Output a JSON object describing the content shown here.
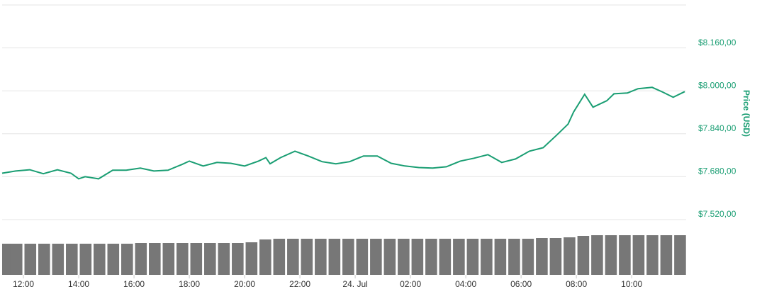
{
  "chart_data": [
    {
      "type": "line",
      "x": [
        11.23,
        11.72,
        12.23,
        12.72,
        13.23,
        13.72,
        14.0,
        14.23,
        14.72,
        15.23,
        15.72,
        16.23,
        16.72,
        17.23,
        17.72,
        18.0,
        18.5,
        19.0,
        19.5,
        20.0,
        20.5,
        20.77,
        20.92,
        21.3,
        21.82,
        22.3,
        22.8,
        23.3,
        23.8,
        24.3,
        24.8,
        25.3,
        25.8,
        26.3,
        26.8,
        27.3,
        27.8,
        28.3,
        28.8,
        29.3,
        29.8,
        30.3,
        30.8,
        31.3,
        31.7,
        31.9,
        32.3,
        32.6,
        33.1,
        33.36,
        33.85,
        34.23,
        34.74,
        35.13,
        35.5,
        35.92
      ],
      "series": [
        {
          "color": "#1a9e73",
          "values": [
            7693,
            7701,
            7706,
            7691,
            7706,
            7693,
            7672,
            7680,
            7672,
            7704,
            7704,
            7712,
            7701,
            7704,
            7725,
            7738,
            7720,
            7733,
            7730,
            7720,
            7738,
            7751,
            7728,
            7751,
            7775,
            7757,
            7736,
            7728,
            7736,
            7757,
            7757,
            7730,
            7720,
            7714,
            7712,
            7717,
            7738,
            7749,
            7762,
            7733,
            7746,
            7775,
            7788,
            7836,
            7876,
            7921,
            7987,
            7939,
            7963,
            7989,
            7992,
            8008,
            8013,
            7995,
            7976,
            7997
          ]
        }
      ],
      "xlim": [
        11.23,
        35.97
      ],
      "ylim": [
        7520,
        8320
      ],
      "yticks": [
        {
          "value": 7520,
          "label": "$7.520,00"
        },
        {
          "value": 7680,
          "label": "$7.680,00"
        },
        {
          "value": 7840,
          "label": "$7.840,00"
        },
        {
          "value": 8000,
          "label": "$8.000,00"
        },
        {
          "value": 8160,
          "label": "$8.160,00"
        }
      ],
      "ylabel": "Price (USD)",
      "grid": true
    },
    {
      "type": "bar",
      "x": [
        11.25,
        11.75,
        12.25,
        12.75,
        13.25,
        13.75,
        14.25,
        14.75,
        15.25,
        15.75,
        16.25,
        16.75,
        17.25,
        17.75,
        18.25,
        18.75,
        19.25,
        19.75,
        20.25,
        20.75,
        21.25,
        21.75,
        22.25,
        22.75,
        23.25,
        23.75,
        24.25,
        24.75,
        25.25,
        25.75,
        26.25,
        26.75,
        27.25,
        27.75,
        28.25,
        28.75,
        29.25,
        29.75,
        30.25,
        30.75,
        31.25,
        31.75,
        32.25,
        32.75,
        33.25,
        33.75,
        34.25,
        34.75,
        35.25,
        35.75
      ],
      "values": [
        44,
        44,
        44,
        44,
        44,
        44,
        44,
        44,
        44,
        44,
        45,
        45,
        45,
        45,
        45,
        45,
        45,
        45,
        46,
        50,
        51,
        51,
        51,
        51,
        51,
        51,
        51,
        51,
        51,
        51,
        51,
        51,
        51,
        51,
        51,
        51,
        51,
        51,
        51,
        52,
        52,
        53,
        55,
        56,
        56,
        56,
        56,
        56,
        56,
        56
      ],
      "color": "#777777",
      "xlim": [
        11.23,
        35.97
      ],
      "ylim": [
        0,
        60
      ],
      "xticks": [
        {
          "value": 12,
          "label": "12:00"
        },
        {
          "value": 14,
          "label": "14:00"
        },
        {
          "value": 16,
          "label": "16:00"
        },
        {
          "value": 18,
          "label": "18:00"
        },
        {
          "value": 20,
          "label": "20:00"
        },
        {
          "value": 22,
          "label": "22:00"
        },
        {
          "value": 24,
          "label": "24. Jul"
        },
        {
          "value": 26,
          "label": "02:00"
        },
        {
          "value": 28,
          "label": "04:00"
        },
        {
          "value": 30,
          "label": "06:00"
        },
        {
          "value": 32,
          "label": "08:00"
        },
        {
          "value": 34,
          "label": "10:00"
        }
      ]
    }
  ]
}
